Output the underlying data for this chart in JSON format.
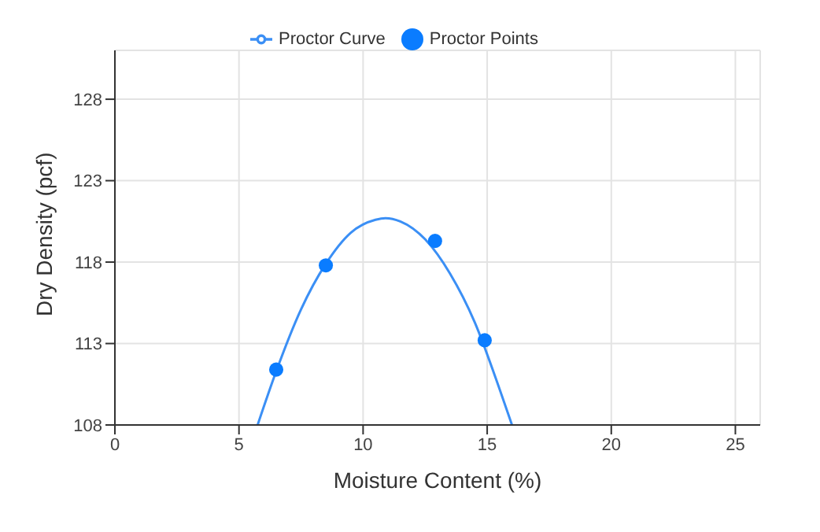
{
  "chart_data": {
    "type": "scatter",
    "xlabel": "Moisture Content (%)",
    "ylabel": "Dry Density (pcf)",
    "xlim": [
      0,
      26
    ],
    "xticks": [
      0,
      5,
      10,
      15,
      20,
      25
    ],
    "ylim": [
      108,
      131
    ],
    "yticks": [
      108,
      113,
      118,
      123,
      128
    ],
    "grid": true,
    "legend": "top",
    "marker": "circle",
    "series": [
      {
        "name": "Proctor Points",
        "color": "#0a7cff",
        "x": [
          6.5,
          8.5,
          12.9,
          14.9
        ],
        "values": [
          111.4,
          117.8,
          119.3,
          113.2
        ]
      },
      {
        "name": "Proctor Curve",
        "type": "line",
        "color": "#3b8ff5",
        "marker": "none",
        "line_style": "solid",
        "x": [
          5.75,
          6.5,
          7.5,
          8.5,
          9.5,
          10.5,
          10.9,
          11.5,
          12.5,
          13.5,
          14.5,
          15.5,
          16.0
        ],
        "values": [
          108,
          111.3,
          115.1,
          117.9,
          119.8,
          120.6,
          120.7,
          120.5,
          119.4,
          117.3,
          114.3,
          110.2,
          108
        ]
      }
    ]
  }
}
